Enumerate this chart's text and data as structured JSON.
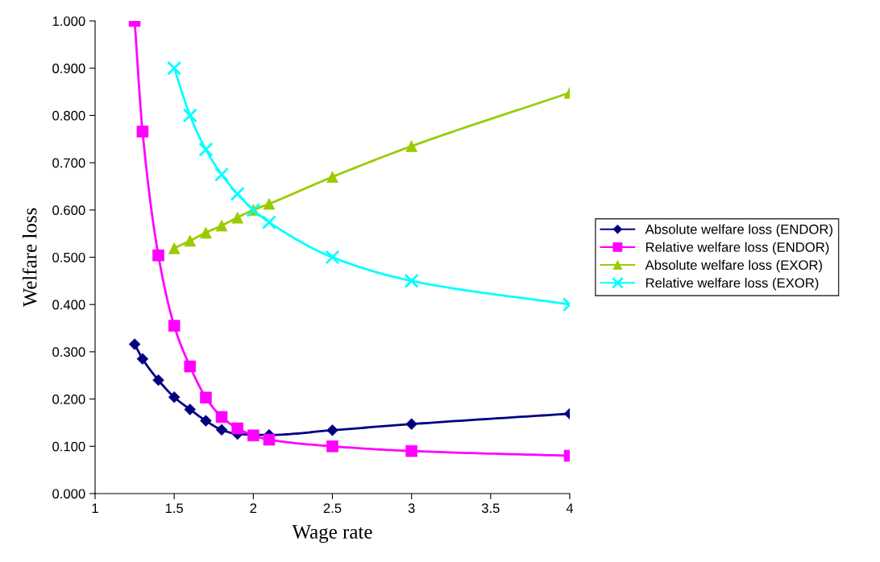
{
  "chart_data": {
    "type": "line",
    "xlabel": "Wage rate",
    "ylabel": "Welfare loss",
    "xlim": [
      1,
      4
    ],
    "xticks": [
      1,
      1.5,
      2,
      2.5,
      3,
      3.5,
      4
    ],
    "ylim": [
      0,
      1
    ],
    "yticks": [
      {
        "value": 0,
        "label": "0.000"
      },
      {
        "value": 0.1,
        "label": "0.100"
      },
      {
        "value": 0.2,
        "label": "0.200"
      },
      {
        "value": 0.3,
        "label": "0.300"
      },
      {
        "value": 0.4,
        "label": "0.400"
      },
      {
        "value": 0.5,
        "label": "0.500"
      },
      {
        "value": 0.6,
        "label": "0.600"
      },
      {
        "value": 0.7,
        "label": "0.700"
      },
      {
        "value": 0.8,
        "label": "0.800"
      },
      {
        "value": 0.9,
        "label": "0.900"
      },
      {
        "value": 1,
        "label": "1.000"
      }
    ],
    "grid": false,
    "legend": "right",
    "line_style": "solid",
    "series": [
      {
        "name": "Absolute welfare loss (ENDOR)",
        "color": "#000080",
        "marker": "diamond",
        "x": [
          1.25,
          1.3,
          1.4,
          1.5,
          1.6,
          1.7,
          1.8,
          1.9,
          2.1,
          2.5,
          3,
          4
        ],
        "values": [
          0.316,
          0.285,
          0.24,
          0.204,
          0.178,
          0.154,
          0.135,
          0.126,
          0.124,
          0.134,
          0.147,
          0.169
        ]
      },
      {
        "name": "Relative welfare loss (ENDOR)",
        "color": "#ff00ff",
        "marker": "square",
        "x": [
          1.25,
          1.3,
          1.4,
          1.5,
          1.6,
          1.7,
          1.8,
          1.9,
          2.0,
          2.1,
          2.5,
          3,
          4
        ],
        "values": [
          1.0,
          0.766,
          0.504,
          0.355,
          0.269,
          0.203,
          0.162,
          0.138,
          0.123,
          0.114,
          0.1,
          0.09,
          0.08
        ]
      },
      {
        "name": "Absolute welfare loss (EXOR)",
        "color": "#99cc00",
        "marker": "triangle",
        "x": [
          1.5,
          1.6,
          1.7,
          1.8,
          1.9,
          2.0,
          2.1,
          2.5,
          3,
          4
        ],
        "values": [
          0.519,
          0.535,
          0.552,
          0.567,
          0.584,
          0.6,
          0.613,
          0.67,
          0.735,
          0.848
        ]
      },
      {
        "name": "Relative welfare loss (EXOR)",
        "color": "#00ffff",
        "marker": "cross",
        "x": [
          1.5,
          1.6,
          1.7,
          1.8,
          1.9,
          2.0,
          2.1,
          2.5,
          3,
          4
        ],
        "values": [
          0.9,
          0.8,
          0.728,
          0.675,
          0.634,
          0.6,
          0.574,
          0.5,
          0.45,
          0.4
        ]
      }
    ]
  }
}
